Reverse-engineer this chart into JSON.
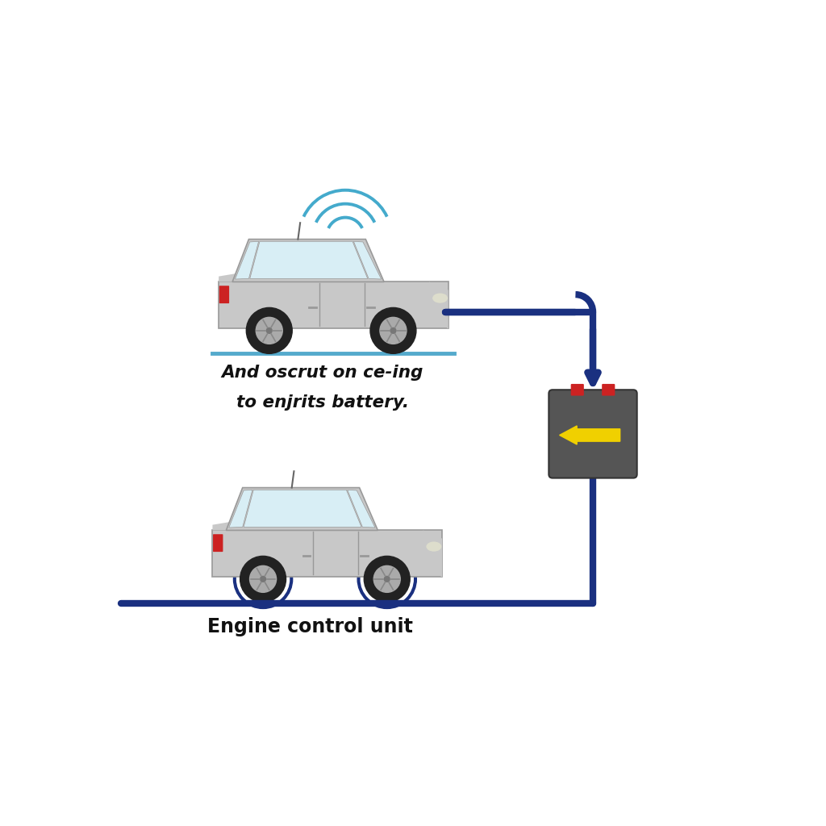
{
  "bg_color": "#ffffff",
  "car_body_color": "#c8c8c8",
  "car_dark_color": "#999999",
  "car_wheel_color": "#222222",
  "car_hub_color": "#aaaaaa",
  "car_red_color": "#cc2222",
  "line_color": "#1a3080",
  "battery_color": "#555555",
  "battery_terminal_color": "#cc2222",
  "arrow_color": "#f0d000",
  "wifi_color": "#44aacc",
  "wheel_highlight_color": "#1a3080",
  "text1": "And oscrut on ce-ing",
  "text2": "to enjrits battery.",
  "text3": "Engine control unit",
  "text_color": "#111111",
  "ground_line_color1": "#55aacc",
  "ground_line_color2": "#1a3080",
  "line_width": 6
}
